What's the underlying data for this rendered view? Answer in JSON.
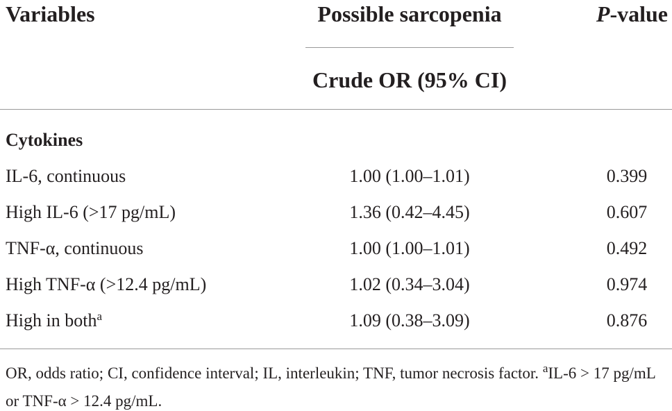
{
  "header": {
    "variables": "Variables",
    "group": "Possible sarcopenia",
    "p_value": "P-value",
    "subheader": "Crude OR (95% CI)"
  },
  "table": {
    "section": "Cytokines",
    "rows": [
      {
        "label": "IL-6, continuous",
        "or": "1.00 (1.00–1.01)",
        "p": "0.399"
      },
      {
        "label": "High IL-6 (>17 pg/mL)",
        "or": "1.36 (0.42–4.45)",
        "p": "0.607"
      },
      {
        "label": "TNF-α, continuous",
        "or": "1.00 (1.00–1.01)",
        "p": "0.492"
      },
      {
        "label": "High TNF-α (>12.4 pg/mL)",
        "or": "1.02 (0.34–3.04)",
        "p": "0.974"
      },
      {
        "label": "High in both",
        "marker": "a",
        "or": "1.09 (0.38–3.09)",
        "p": "0.876"
      }
    ]
  },
  "footnote": {
    "text": "OR, odds ratio; CI, confidence interval; IL, interleukin; TNF, tumor necrosis factor.",
    "marker": "a",
    "detail": "IL-6 > 17 pg/mL or TNF-α > 12.4 pg/mL."
  }
}
